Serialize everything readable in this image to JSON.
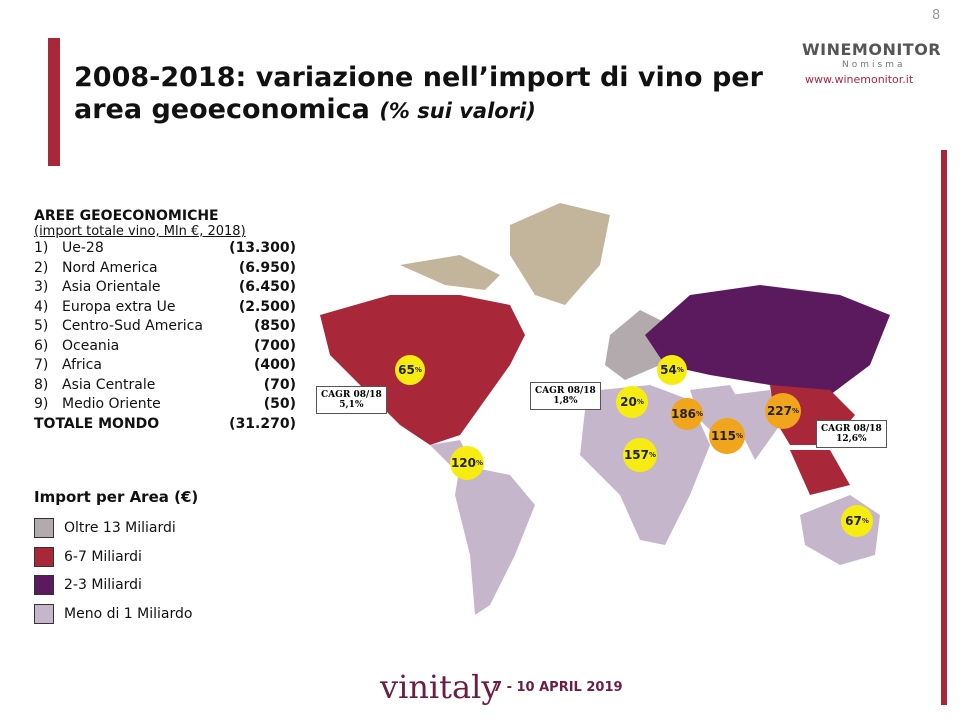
{
  "page_number": "8",
  "logo": {
    "name": "WINEMONITOR",
    "sub": "Nomisma",
    "url": "www.winemonitor.it"
  },
  "title": {
    "main": "2008-2018: variazione nell’import di vino per area geoeconomica",
    "note": "(% sui valori)"
  },
  "list": {
    "heading": "AREE GEOECONOMICHE",
    "subheading": "(import totale vino, Mln €,  2018)",
    "items": [
      [
        "1)",
        "Ue-28",
        "(13.300)"
      ],
      [
        "2)",
        "Nord America",
        "(6.950)"
      ],
      [
        "3)",
        "Asia Orientale",
        "(6.450)"
      ],
      [
        "4)",
        "Europa extra Ue",
        "(2.500)"
      ],
      [
        "5)",
        "Centro-Sud America",
        "(850)"
      ],
      [
        "6)",
        "Oceania",
        "(700)"
      ],
      [
        "7)",
        "Africa",
        "(400)"
      ],
      [
        "8)",
        "Asia Centrale",
        "(70)"
      ],
      [
        "9)",
        "Medio Oriente",
        "(50)"
      ]
    ],
    "total": [
      "TOTALE MONDO",
      "(31.270)"
    ]
  },
  "legend": {
    "title": "Import per Area (€)",
    "items": [
      {
        "label": "Oltre 13 Miliardi",
        "color": "#b3aaad"
      },
      {
        "label": "6-7 Miliardi",
        "color": "#a8283a"
      },
      {
        "label": "2-3 Miliardi",
        "color": "#5b1a5e"
      },
      {
        "label": "Meno di 1 Miliardo",
        "color": "#c6b6cc"
      }
    ]
  },
  "bubbles": [
    {
      "value": "65",
      "unit": "%",
      "color": "#f7ec12"
    },
    {
      "value": "120",
      "unit": "%",
      "color": "#f7ec12"
    },
    {
      "value": "54",
      "unit": "%",
      "color": "#f7ec12"
    },
    {
      "value": "20",
      "unit": "%",
      "color": "#f7ec12"
    },
    {
      "value": "186",
      "unit": "%",
      "color": "#f0a51c"
    },
    {
      "value": "157",
      "unit": "%",
      "color": "#f7ec12"
    },
    {
      "value": "227",
      "unit": "%",
      "color": "#f0a51c"
    },
    {
      "value": "115",
      "unit": "%",
      "color": "#f0a51c"
    },
    {
      "value": "67",
      "unit": "%",
      "color": "#f7ec12"
    }
  ],
  "cagr_boxes": [
    {
      "label": "CAGR 08/18",
      "value": "5,1%"
    },
    {
      "label": "CAGR 08/18",
      "value": "1,8%"
    },
    {
      "label": "CAGR 08/18",
      "value": "12,6%"
    }
  ],
  "footer": {
    "brand": "vinitaly",
    "dates": "7 - 10 APRIL 2019"
  }
}
